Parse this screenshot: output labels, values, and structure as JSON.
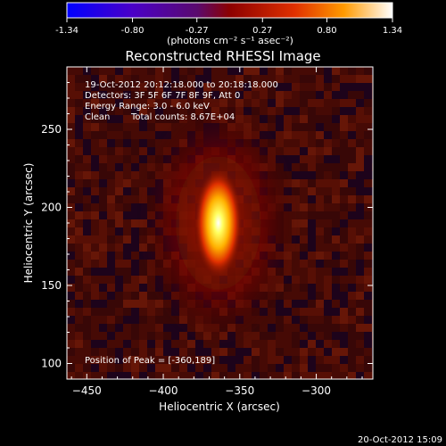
{
  "chart_data": {
    "type": "heatmap",
    "title": "Reconstructed RHESSI Image",
    "xlabel": "Heliocentric X (arcsec)",
    "ylabel": "Heliocentric Y (arcsec)",
    "xlim": [
      -463,
      -263
    ],
    "ylim": [
      90,
      290
    ],
    "xticks": [
      -450,
      -400,
      -350,
      -300
    ],
    "yticks": [
      100,
      150,
      200,
      250
    ],
    "grid": false,
    "colorbar": {
      "ticks": [
        "-1.34",
        "-0.80",
        "-0.27",
        "0.27",
        "0.80",
        "1.34"
      ],
      "range": [
        -1.34,
        1.34
      ],
      "units_label": "(photons cm⁻² s⁻¹ asec⁻²)"
    },
    "annotations": {
      "time": "19-Oct-2012 20:12:18.000 to 20:18:18.000",
      "detectors": "Detectors: 3F 5F 6F 7F 8F 9F, Att 0",
      "energy": "Energy Range: 3.0 - 6.0 keV",
      "method": "Clean",
      "counts": "Total counts: 8.67E+04",
      "peak": "Position of Peak = [-360,189]"
    },
    "peak_position": [
      -360,
      189
    ],
    "source": {
      "center": [
        -364,
        190
      ],
      "sigma_x": 8,
      "sigma_y": 18
    }
  },
  "footer": {
    "date": "20-Oct-2012 15:09"
  }
}
